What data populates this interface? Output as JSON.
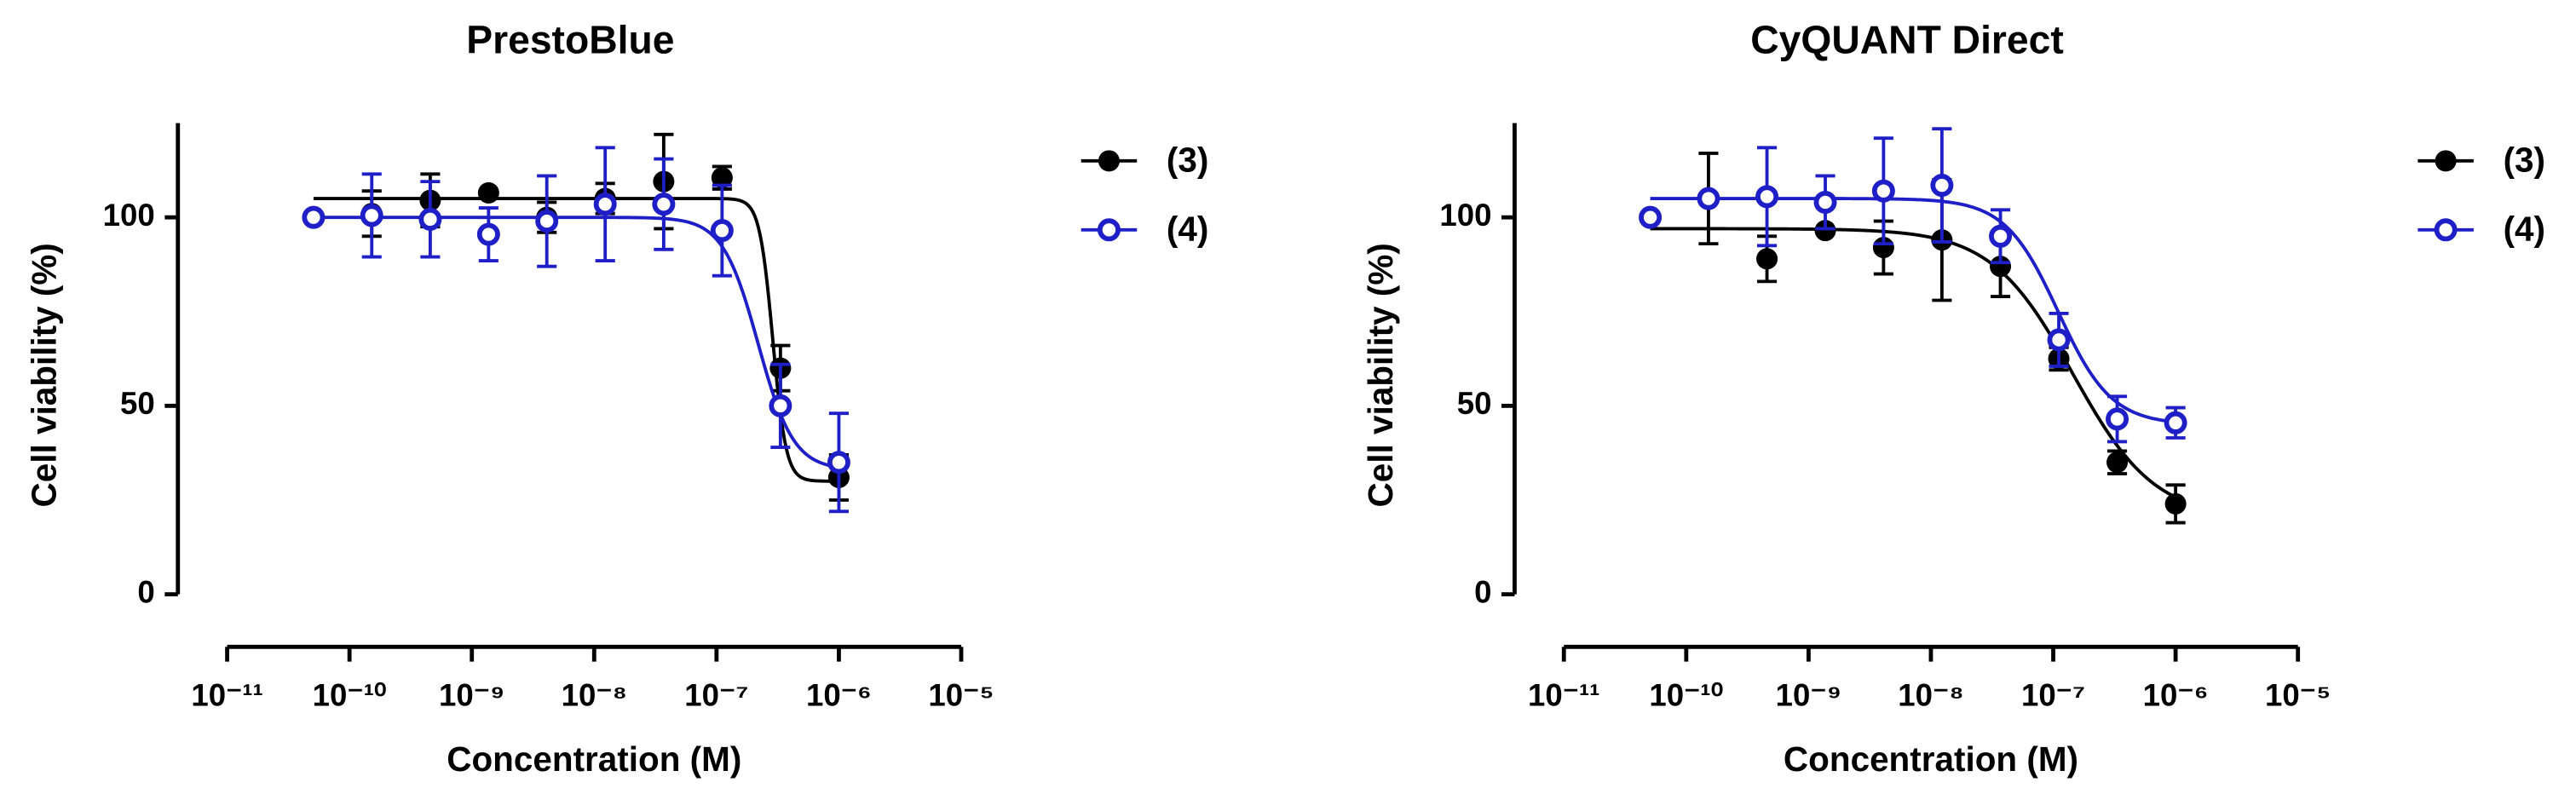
{
  "chart_data": [
    {
      "type": "dose-response",
      "title": "PrestoBlue",
      "x_label": "Concentration (M)",
      "y_label": "Cell viability  (%)",
      "log_x": true,
      "xlim": [
        1e-11,
        1e-05
      ],
      "xticks": [
        {
          "value": 1e-11,
          "label": "10⁻¹¹"
        },
        {
          "value": 1e-10,
          "label": "10⁻¹⁰"
        },
        {
          "value": 1e-09,
          "label": "10⁻⁹"
        },
        {
          "value": 1e-08,
          "label": "10⁻⁸"
        },
        {
          "value": 1e-07,
          "label": "10⁻⁷"
        },
        {
          "value": 1e-06,
          "label": "10⁻⁶"
        },
        {
          "value": 1e-05,
          "label": "10⁻⁵"
        }
      ],
      "ylim": [
        0,
        125
      ],
      "yticks": [
        0,
        50,
        100
      ],
      "x": [
        5.08e-11,
        1.52e-10,
        4.57e-10,
        1.37e-09,
        4.1e-09,
        1.23e-08,
        3.7e-08,
        1.11e-07,
        3.33e-07,
        1e-06
      ],
      "legend": "right",
      "series": [
        {
          "name": "(3)",
          "color": "#000000",
          "marker": "filled",
          "values": [
            100,
            101,
            104.5,
            106.5,
            100,
            105,
            109.5,
            110.5,
            60,
            31
          ],
          "errors": [
            0,
            6,
            7,
            0,
            4,
            4,
            12.5,
            3,
            6,
            6
          ],
          "fit": {
            "top": 105,
            "bottom": 30,
            "log_ec50": -6.54,
            "hill": -8
          }
        },
        {
          "name": "(4)",
          "color": "#1f1fc8",
          "marker": "open",
          "values": [
            100,
            100.5,
            99.5,
            95.5,
            99,
            103.5,
            103.5,
            96.5,
            50,
            35
          ],
          "errors": [
            0,
            11,
            10,
            7,
            12,
            15,
            12,
            12,
            11,
            13
          ],
          "fit": {
            "top": 100,
            "bottom": 33,
            "log_ec50": -6.66,
            "hill": -3
          }
        }
      ]
    },
    {
      "type": "dose-response",
      "title": "CyQUANT  Direct",
      "x_label": "Concentration (M)",
      "y_label": "Cell viability  (%)",
      "log_x": true,
      "xlim": [
        1e-11,
        1e-05
      ],
      "xticks": [
        {
          "value": 1e-11,
          "label": "10⁻¹¹"
        },
        {
          "value": 1e-10,
          "label": "10⁻¹⁰"
        },
        {
          "value": 1e-09,
          "label": "10⁻⁹"
        },
        {
          "value": 1e-08,
          "label": "10⁻⁸"
        },
        {
          "value": 1e-07,
          "label": "10⁻⁷"
        },
        {
          "value": 1e-06,
          "label": "10⁻⁶"
        },
        {
          "value": 1e-05,
          "label": "10⁻⁵"
        }
      ],
      "ylim": [
        0,
        125
      ],
      "yticks": [
        0,
        50,
        100
      ],
      "x": [
        5.08e-11,
        1.52e-10,
        4.57e-10,
        1.37e-09,
        4.1e-09,
        1.23e-08,
        3.7e-08,
        1.11e-07,
        3.33e-07,
        1e-06
      ],
      "legend": "right",
      "series": [
        {
          "name": "(3)",
          "color": "#000000",
          "marker": "filled",
          "values": [
            100,
            105,
            89,
            96.5,
            92,
            94,
            87,
            62.5,
            35,
            24
          ],
          "errors": [
            0,
            12,
            6,
            0,
            7,
            16,
            8,
            3,
            3,
            5
          ],
          "fit": {
            "top": 97,
            "bottom": 20,
            "log_ec50": -6.84,
            "hill": -1.3
          }
        },
        {
          "name": "(4)",
          "color": "#1f1fc8",
          "marker": "open",
          "values": [
            100,
            105,
            105.5,
            104,
            107,
            108.5,
            95,
            67.5,
            46.5,
            45.5
          ],
          "errors": [
            0,
            1,
            13,
            7,
            14,
            15,
            7,
            7,
            6,
            4
          ],
          "fit": {
            "top": 105,
            "bottom": 45,
            "log_ec50": -6.96,
            "hill": -2
          }
        }
      ]
    }
  ]
}
